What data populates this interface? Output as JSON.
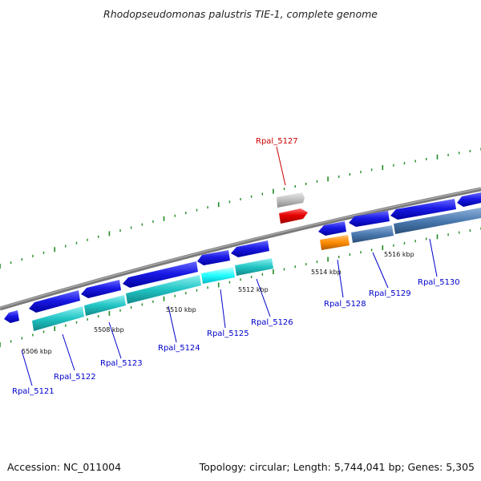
{
  "title": "Rhodopseudomonas palustris TIE-1, complete genome",
  "footer": {
    "accession": "Accession: NC_011004",
    "summary": "Topology: circular; Length: 5,744,041 bp; Genes: 5,305"
  },
  "ticks": [
    "5506 kbp",
    "5508 kbp",
    "5510 kbp",
    "5512 kbp",
    "5514 kbp",
    "5516 kbp"
  ],
  "genes": [
    {
      "name": "Rpal_5121",
      "color": "#0000cc"
    },
    {
      "name": "Rpal_5122",
      "color": "#0000cc"
    },
    {
      "name": "Rpal_5123",
      "color": "#0000cc"
    },
    {
      "name": "Rpal_5124",
      "color": "#0000cc"
    },
    {
      "name": "Rpal_5125",
      "color": "#0000cc"
    },
    {
      "name": "Rpal_5126",
      "color": "#0000cc"
    },
    {
      "name": "Rpal_5127",
      "color": "#cc0000"
    },
    {
      "name": "Rpal_5128",
      "color": "#0000cc"
    },
    {
      "name": "Rpal_5129",
      "color": "#0000cc"
    },
    {
      "name": "Rpal_5130",
      "color": "#0000cc"
    }
  ],
  "colors": {
    "cds_forward": "#1a1ae6",
    "cds_reverse": "#1a1ae6",
    "cds_highlight": "#e60000",
    "pseudo": "#b8b8b8",
    "rna_cyan": "#20c8c8",
    "rna_light_cyan": "#00ffff",
    "rna_steel": "#4a7ab0",
    "rna_orange": "#ff8c00",
    "backbone": "#808080",
    "tick_mark": "#228b22"
  }
}
